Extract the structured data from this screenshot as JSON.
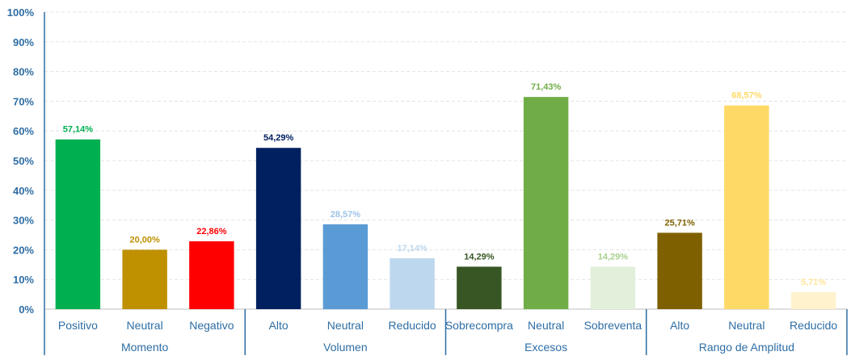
{
  "chart_data": {
    "type": "bar",
    "ylim": [
      0,
      100
    ],
    "yticks": [
      "0%",
      "10%",
      "20%",
      "30%",
      "40%",
      "50%",
      "60%",
      "70%",
      "80%",
      "90%",
      "100%"
    ],
    "grid": true,
    "groups": [
      {
        "name": "Momento",
        "bars": [
          {
            "label": "Positivo",
            "value": 57.14,
            "value_label": "57,14%",
            "color": "#00B050",
            "label_color": "#00B050"
          },
          {
            "label": "Neutral",
            "value": 20.0,
            "value_label": "20,00%",
            "color": "#BF9000",
            "label_color": "#BF9000"
          },
          {
            "label": "Negativo",
            "value": 22.86,
            "value_label": "22,86%",
            "color": "#FF0000",
            "label_color": "#FF0000"
          }
        ]
      },
      {
        "name": "Volumen",
        "bars": [
          {
            "label": "Alto",
            "value": 54.29,
            "value_label": "54,29%",
            "color": "#002060",
            "label_color": "#002060"
          },
          {
            "label": "Neutral",
            "value": 28.57,
            "value_label": "28,57%",
            "color": "#5B9BD5",
            "label_color": "#9DC3E6"
          },
          {
            "label": "Reducido",
            "value": 17.14,
            "value_label": "17,14%",
            "color": "#BDD7EE",
            "label_color": "#BDD7EE"
          }
        ]
      },
      {
        "name": "Excesos",
        "bars": [
          {
            "label": "Sobrecompra",
            "value": 14.29,
            "value_label": "14,29%",
            "color": "#375623",
            "label_color": "#375623"
          },
          {
            "label": "Neutral",
            "value": 71.43,
            "value_label": "71,43%",
            "color": "#70AD47",
            "label_color": "#70AD47"
          },
          {
            "label": "Sobreventa",
            "value": 14.29,
            "value_label": "14,29%",
            "color": "#E2EFDA",
            "label_color": "#A9D08E"
          }
        ]
      },
      {
        "name": "Rango de Amplitud",
        "bars": [
          {
            "label": "Alto",
            "value": 25.71,
            "value_label": "25,71%",
            "color": "#7F6000",
            "label_color": "#7F6000"
          },
          {
            "label": "Neutral",
            "value": 68.57,
            "value_label": "68,57%",
            "color": "#FFD966",
            "label_color": "#FFD966"
          },
          {
            "label": "Reducido",
            "value": 5.71,
            "value_label": "5,71%",
            "color": "#FFF2CC",
            "label_color": "#FFE699"
          }
        ]
      }
    ]
  }
}
